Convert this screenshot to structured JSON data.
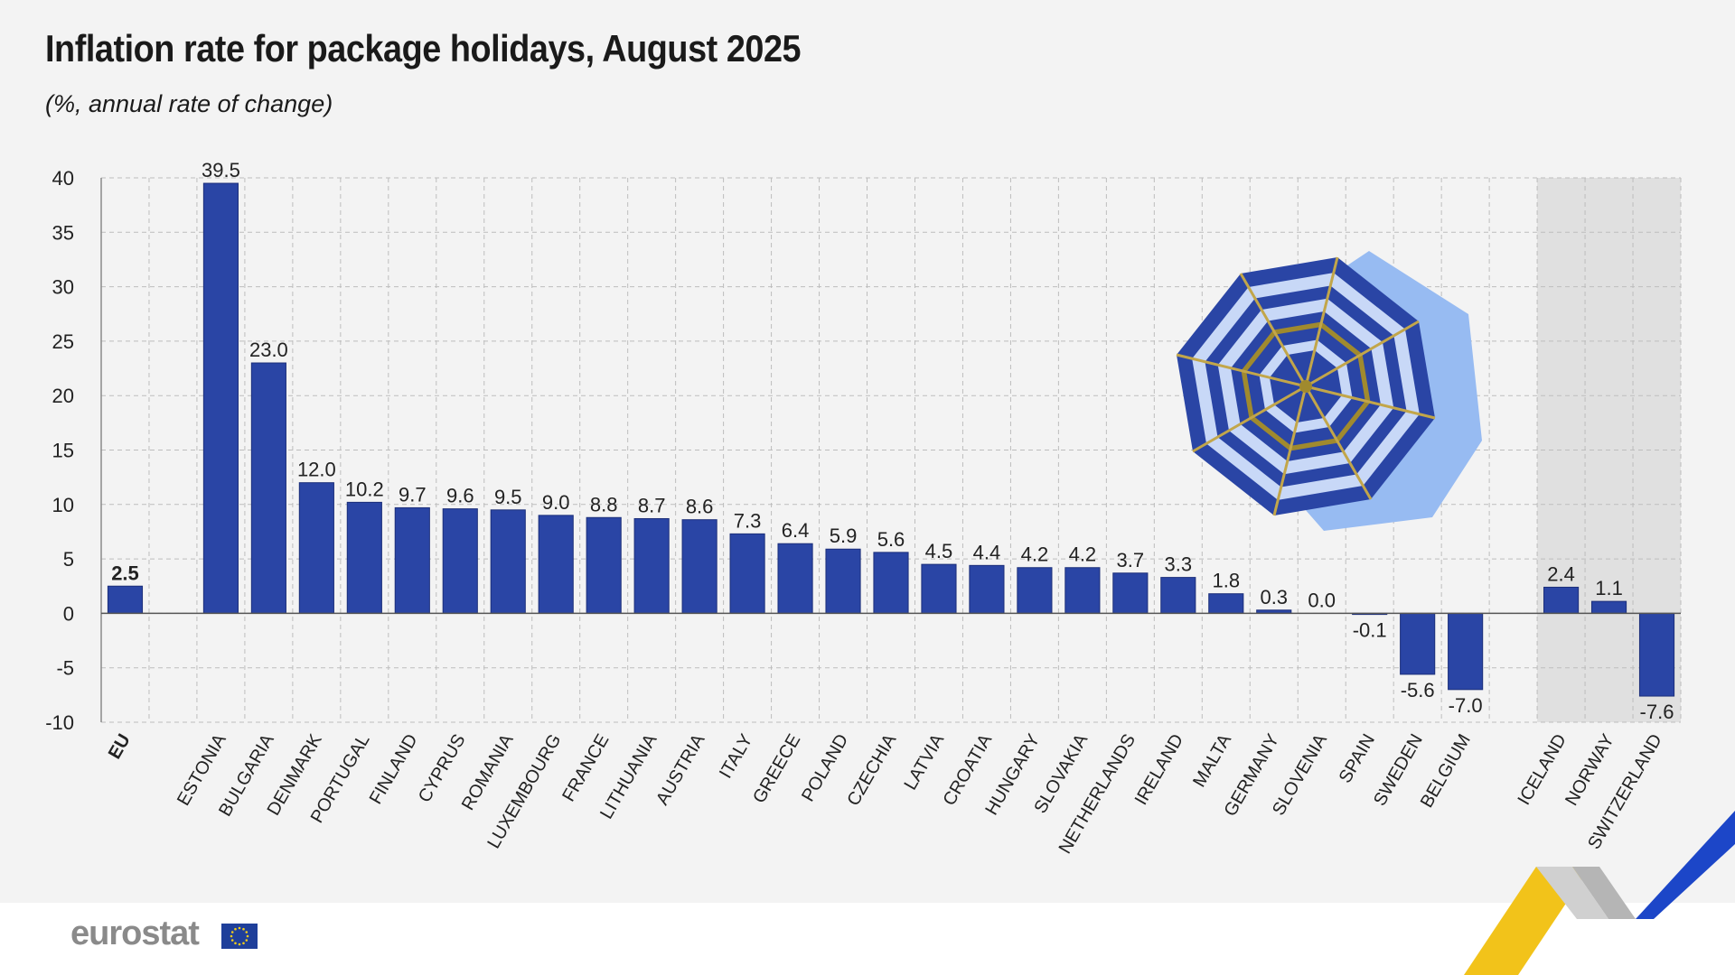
{
  "title": "Inflation rate for package holidays, August 2025",
  "subtitle": "(%, annual rate of change)",
  "logo": "eurostat",
  "colors": {
    "bar": "#2a45a5",
    "bar_outline": "#1c2f7a",
    "band": "#e0e0e0",
    "grid": "#bdbdbd"
  },
  "chart_data": {
    "type": "bar",
    "ylim": [
      -10,
      40
    ],
    "yticks": [
      40,
      35,
      30,
      25,
      20,
      15,
      10,
      5,
      0,
      -5,
      -10
    ],
    "grid": true,
    "categories": [
      "EU",
      "ESTONIA",
      "BULGARIA",
      "DENMARK",
      "PORTUGAL",
      "FINLAND",
      "CYPRUS",
      "ROMANIA",
      "LUXEMBOURG",
      "FRANCE",
      "LITHUANIA",
      "AUSTRIA",
      "ITALY",
      "GREECE",
      "POLAND",
      "CZECHIA",
      "LATVIA",
      "CROATIA",
      "HUNGARY",
      "SLOVAKIA",
      "NETHERLANDS",
      "IRELAND",
      "MALTA",
      "GERMANY",
      "SLOVENIA",
      "SPAIN",
      "SWEDEN",
      "BELGIUM",
      "ICELAND",
      "NORWAY",
      "SWITZERLAND"
    ],
    "values": [
      2.5,
      39.5,
      23.0,
      12.0,
      10.2,
      9.7,
      9.6,
      9.5,
      9.0,
      8.8,
      8.7,
      8.6,
      7.3,
      6.4,
      5.9,
      5.6,
      4.5,
      4.4,
      4.2,
      4.2,
      3.7,
      3.3,
      1.8,
      0.3,
      0.0,
      -0.1,
      -5.6,
      -7.0,
      2.4,
      1.1,
      -7.6
    ],
    "value_labels": [
      "2.5",
      "39.5",
      "23.0",
      "12.0",
      "10.2",
      "9.7",
      "9.6",
      "9.5",
      "9.0",
      "8.8",
      "8.7",
      "8.6",
      "7.3",
      "6.4",
      "5.9",
      "5.6",
      "4.5",
      "4.4",
      "4.2",
      "4.2",
      "3.7",
      "3.3",
      "1.8",
      "0.3",
      "0.0",
      "-0.1",
      "-5.6",
      "-7.0",
      "2.4",
      "1.1",
      "-7.6"
    ],
    "highlighted": [
      "EU"
    ],
    "shaded_group": [
      "ICELAND",
      "NORWAY",
      "SWITZERLAND"
    ]
  }
}
